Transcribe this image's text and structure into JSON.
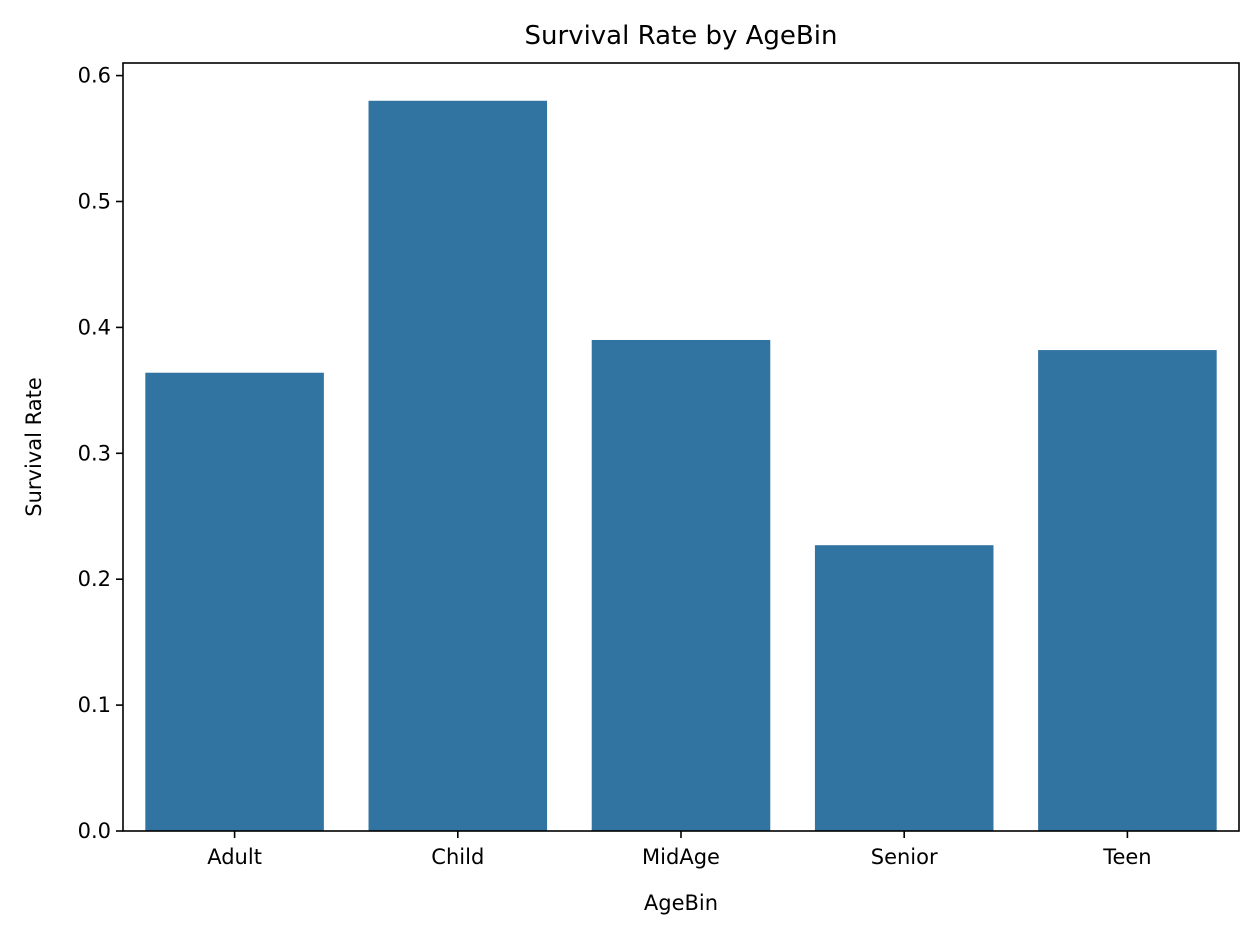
{
  "chart_data": {
    "type": "bar",
    "title": "Survival Rate by AgeBin",
    "xlabel": "AgeBin",
    "ylabel": "Survival Rate",
    "categories": [
      "Adult",
      "Child",
      "MidAge",
      "Senior",
      "Teen"
    ],
    "values": [
      0.364,
      0.58,
      0.39,
      0.227,
      0.382
    ],
    "ylim": [
      0,
      0.61
    ],
    "yticks": [
      "0.0",
      "0.1",
      "0.2",
      "0.3",
      "0.4",
      "0.5",
      "0.6"
    ],
    "bar_color": "#3274a1",
    "grid": false,
    "legend": false
  }
}
